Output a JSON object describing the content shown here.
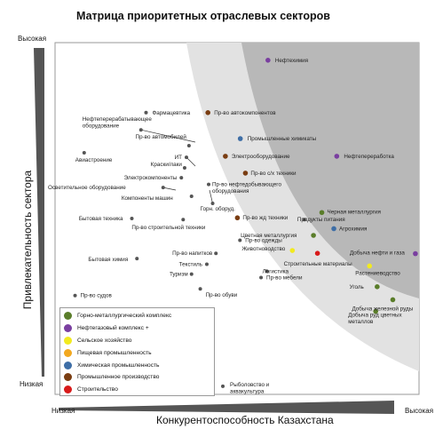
{
  "title": "Матрица приоритетных отраслевых секторов",
  "axes": {
    "y_label": "Привлекательность сектора",
    "y_high": "Высокая",
    "y_low": "Низкая",
    "x_label": "Конкурентоспособность Казахстана",
    "x_low": "Низкая",
    "x_high": "Высокая"
  },
  "legend": [
    {
      "label": "Горно-металлургический комплекс",
      "color": "#5a7d2a"
    },
    {
      "label": "Нефтегазовый комплекс +",
      "color": "#7a3fa0"
    },
    {
      "label": "Сельское хозяйство",
      "color": "#f2ea1f"
    },
    {
      "label": "Пищевая промышленность",
      "color": "#f2a81f"
    },
    {
      "label": "Химическая промышленность",
      "color": "#3e6ea6"
    },
    {
      "label": "Промышленное производство",
      "color": "#7a3d12"
    },
    {
      "label": "Строительство",
      "color": "#d81a1a"
    }
  ],
  "chart_data": {
    "type": "scatter",
    "title": "Матрица приоритетных отраслевых секторов",
    "xlabel": "Конкурентоспособность Казахстана",
    "ylabel": "Привлекательность сектора",
    "xlim": [
      0,
      100
    ],
    "ylim": [
      0,
      100
    ],
    "grid": false,
    "legend_position": "bottom-left",
    "points": [
      {
        "label": "Нефтехимия",
        "x": 58.5,
        "y": 95.0,
        "group": "Нефтегазовый комплекс +"
      },
      {
        "label": "Фармацевтика",
        "x": 25.0,
        "y": 80.1,
        "group": ""
      },
      {
        "label": "Пр-во автокомпонентов",
        "x": 42.0,
        "y": 80.1,
        "group": "Промышленное производство"
      },
      {
        "label": "Нефтеперерабатывающее оборудование",
        "x": 23.6,
        "y": 75.2,
        "group": ""
      },
      {
        "label": "Промышленные химикаты",
        "x": 50.9,
        "y": 72.7,
        "group": "Химическая промышленность"
      },
      {
        "label": "Пр-во автомобилей",
        "x": 36.8,
        "y": 70.7,
        "group": ""
      },
      {
        "label": "Авиастроение",
        "x": 8.0,
        "y": 68.7,
        "group": ""
      },
      {
        "label": "ИТ",
        "x": 36.1,
        "y": 67.4,
        "group": ""
      },
      {
        "label": "Электрооборудование",
        "x": 46.8,
        "y": 67.7,
        "group": "Промышленное производство"
      },
      {
        "label": "Нефтепереработка",
        "x": 77.4,
        "y": 67.7,
        "group": "Нефтегазовый комплекс +"
      },
      {
        "label": "Краски/лаки",
        "x": 35.6,
        "y": 64.4,
        "group": ""
      },
      {
        "label": "Электрокомпоненты",
        "x": 34.7,
        "y": 61.6,
        "group": ""
      },
      {
        "label": "Пр-во с/х техники",
        "x": 52.3,
        "y": 62.9,
        "group": "Промышленное производство"
      },
      {
        "label": "Пр-во нефтедобывающего оборудования",
        "x": 42.2,
        "y": 59.7,
        "group": ""
      },
      {
        "label": "Осветительное оборудование",
        "x": 29.7,
        "y": 58.8,
        "group": ""
      },
      {
        "label": "Компоненты машин",
        "x": 37.5,
        "y": 56.3,
        "group": ""
      },
      {
        "label": "Горн. оборуд.",
        "x": 43.3,
        "y": 54.3,
        "group": ""
      },
      {
        "label": "Черная металлургия",
        "x": 73.3,
        "y": 51.7,
        "group": "Горно-металлургический комплекс"
      },
      {
        "label": "Пр-во жд техники",
        "x": 50.1,
        "y": 50.2,
        "group": "Промышленное производство"
      },
      {
        "label": "Продукты питания",
        "x": 68.5,
        "y": 49.7,
        "group": ""
      },
      {
        "label": "Бытовая техника",
        "x": 21.1,
        "y": 50.0,
        "group": ""
      },
      {
        "label": "Пр-во строительной техники",
        "x": 35.2,
        "y": 49.7,
        "group": ""
      },
      {
        "label": "Агрохимия",
        "x": 76.6,
        "y": 47.1,
        "group": "Химическая промышленность"
      },
      {
        "label": "Цветная металлургия",
        "x": 71.0,
        "y": 45.2,
        "group": "Горно-металлургический комплекс"
      },
      {
        "label": "Пр-во одежды",
        "x": 50.8,
        "y": 43.8,
        "group": ""
      },
      {
        "label": "Животноводство",
        "x": 65.2,
        "y": 40.9,
        "group": "Сельское хозяйство"
      },
      {
        "label": "Добыча нефти и газа",
        "x": 99.0,
        "y": 40.0,
        "group": "Нефтегазовый комплекс +"
      },
      {
        "label": "Строительные материалы",
        "x": 72.1,
        "y": 40.1,
        "group": "Строительство"
      },
      {
        "label": "Пр-во напитков",
        "x": 44.2,
        "y": 40.1,
        "group": ""
      },
      {
        "label": "Бытовая химия",
        "x": 22.5,
        "y": 38.6,
        "group": ""
      },
      {
        "label": "Текстиль",
        "x": 41.7,
        "y": 37.0,
        "group": ""
      },
      {
        "label": "Растениеводство",
        "x": 86.4,
        "y": 36.5,
        "group": "Сельское хозяйство"
      },
      {
        "label": "Логистика",
        "x": 58.2,
        "y": 35.0,
        "group": ""
      },
      {
        "label": "Туризм",
        "x": 37.5,
        "y": 34.2,
        "group": ""
      },
      {
        "label": "Пр-во мебели",
        "x": 56.6,
        "y": 33.2,
        "group": ""
      },
      {
        "label": "Уголь",
        "x": 88.5,
        "y": 30.6,
        "group": "Горно-металлургический комплекс"
      },
      {
        "label": "Пр-во обуви",
        "x": 39.9,
        "y": 30.0,
        "group": ""
      },
      {
        "label": "Добыча железной руды",
        "x": 92.8,
        "y": 26.9,
        "group": "Горно-металлургический комплекс"
      },
      {
        "label": "Пр-во судов",
        "x": 5.5,
        "y": 28.1,
        "group": ""
      },
      {
        "label": "Добыча руд цветных металлов",
        "x": 88.1,
        "y": 23.6,
        "group": "Горно-металлургический комплекс"
      },
      {
        "label": "Рыболовство и аквакультура",
        "x": 46.1,
        "y": 2.3,
        "group": ""
      }
    ]
  }
}
